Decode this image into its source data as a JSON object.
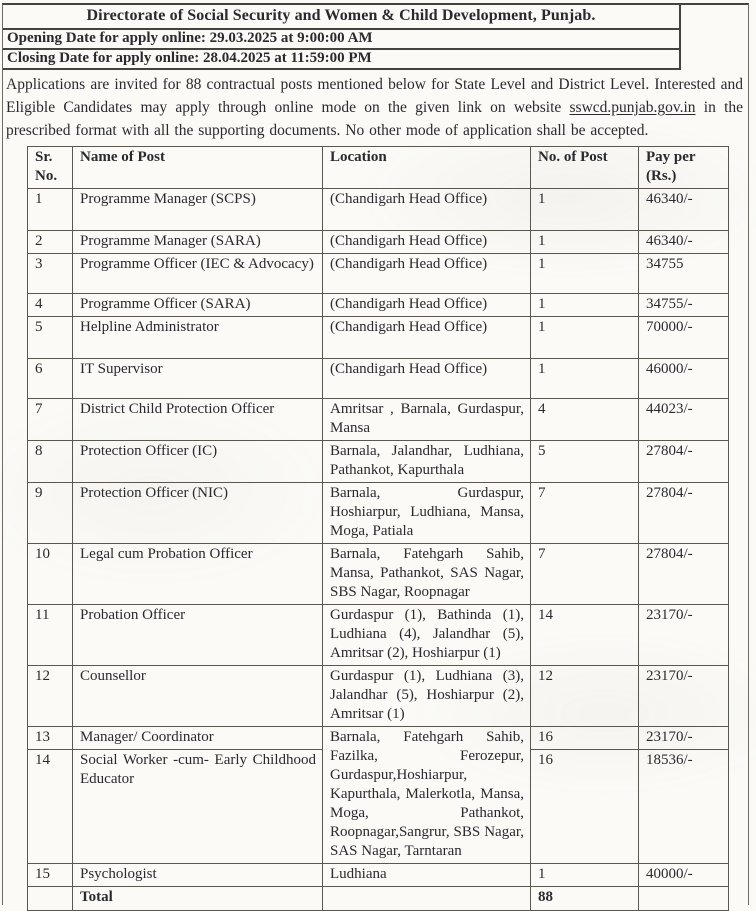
{
  "style": {
    "paper": "#fbfaf7",
    "ink": "#2a2a2e",
    "border_line": "#5a5751"
  },
  "document": {
    "title": "Directorate of Social Security and Women & Child Development, Punjab.",
    "opening_line": "Opening Date for apply online: 29.03.2025 at 9:00:00 AM",
    "closing_line": "Closing Date for apply online: 28.04.2025 at 11:59:00 PM",
    "intro": {
      "before_link": "Applications are invited for 88 contractual posts mentioned below for State Level and District Level. Interested and Eligible Candidates may apply through online mode on the given link on website ",
      "link": "sswcd.punjab.gov.in",
      "after_link": " in the prescribed format with all the supporting documents. No other mode of application shall be accepted."
    },
    "table": {
      "headers": [
        "Sr. No.",
        "Name of Post",
        "Location",
        "No. of Post",
        "Pay per (Rs.)"
      ],
      "rows": [
        {
          "sr": "1",
          "name": "Programme Manager (SCPS)",
          "location": "(Chandigarh Head Office)",
          "posts": "1",
          "pay": "46340/-"
        },
        {
          "sr": "2",
          "name": "Programme Manager (SARA)",
          "location": "(Chandigarh Head Office)",
          "posts": "1",
          "pay": "46340/-"
        },
        {
          "sr": "3",
          "name": "Programme Officer (IEC & Advocacy)",
          "location": "(Chandigarh Head Office)",
          "posts": "1",
          "pay": "34755"
        },
        {
          "sr": "4",
          "name": "Programme Officer (SARA)",
          "location": "(Chandigarh Head Office)",
          "posts": "1",
          "pay": "34755/-"
        },
        {
          "sr": "5",
          "name": "Helpline Administrator",
          "location": "(Chandigarh Head Office)",
          "posts": "1",
          "pay": "70000/-"
        },
        {
          "sr": "6",
          "name": "IT Supervisor",
          "location": "(Chandigarh Head Office)",
          "posts": "1",
          "pay": "46000/-"
        },
        {
          "sr": "7",
          "name": "District Child Protection Officer",
          "location": "Amritsar , Barnala, Gurdaspur, Mansa",
          "posts": "4",
          "pay": "44023/-"
        },
        {
          "sr": "8",
          "name": "Protection Officer (IC)",
          "location": "Barnala, Jalandhar, Ludhiana, Pathankot, Kapurthala",
          "posts": "5",
          "pay": "27804/-"
        },
        {
          "sr": "9",
          "name": "Protection Officer (NIC)",
          "location": "Barnala, Gurdaspur, Hoshiarpur, Ludhiana, Mansa, Moga, Patiala",
          "posts": "7",
          "pay": "27804/-"
        },
        {
          "sr": "10",
          "name": "Legal cum Probation Officer",
          "location": "Barnala, Fatehgarh Sahib, Mansa, Pathankot, SAS Nagar, SBS Nagar, Roopnagar",
          "posts": "7",
          "pay": "27804/-"
        },
        {
          "sr": "11",
          "name": "Probation Officer",
          "location": "Gurdaspur (1), Bathinda (1), Ludhiana (4), Jalandhar (5), Amritsar (2), Hoshiarpur (1)",
          "posts": "14",
          "pay": "23170/-"
        },
        {
          "sr": "12",
          "name": "Counsellor",
          "location": "Gurdaspur (1), Ludhiana (3), Jalandhar (5), Hoshiarpur (2), Amritsar (1)",
          "posts": "12",
          "pay": "23170/-"
        },
        {
          "sr": "13",
          "name": "Manager/ Coordinator",
          "location": "Barnala, Fatehgarh Sahib, Fazilka, Ferozepur, Gurdaspur,Hoshiarpur, Kapurthala, Malerkotla, Mansa, Moga, Pathankot, Roopnagar,Sangrur, SBS Nagar, SAS Nagar, Tarntaran",
          "location_rowspan": 2,
          "posts": "16",
          "pay": "23170/-"
        },
        {
          "sr": "14",
          "name": "Social Worker -cum- Early Childhood Educator",
          "location": null,
          "posts": "16",
          "pay": "18536/-"
        },
        {
          "sr": "15",
          "name": "Psychologist",
          "location": "Ludhiana",
          "posts": "1",
          "pay": "40000/-"
        },
        {
          "sr": "",
          "name": "Total",
          "location": "",
          "posts": "88",
          "pay": "",
          "bold": true
        }
      ]
    }
  }
}
